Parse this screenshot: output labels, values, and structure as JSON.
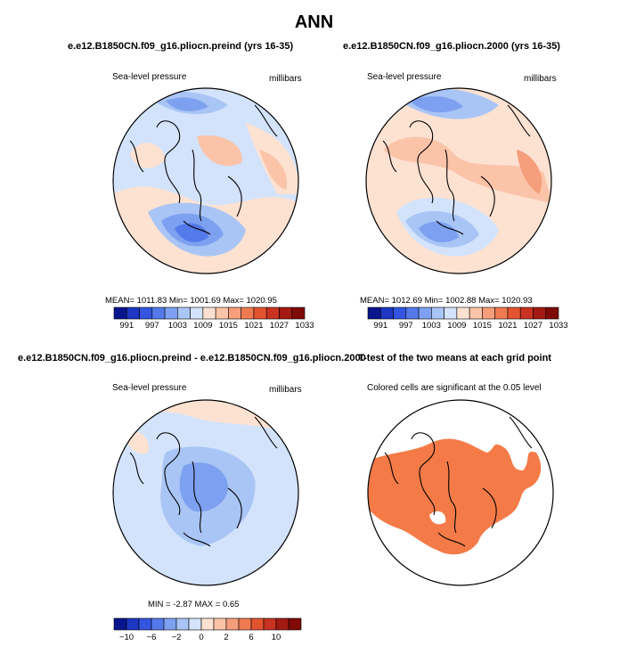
{
  "title": "ANN",
  "panels": [
    {
      "title": "e.e12.B1850CN.f09_g16.pliocn.preind (yrs 16-35)",
      "left_label": "Sea-level pressure",
      "right_label": "millibars",
      "stats": "MEAN=  1011.83   Min=  1001.69   Max=  1020.95"
    },
    {
      "title": "e.e12.B1850CN.f09_g16.pliocn.2000 (yrs 16-35)",
      "left_label": "Sea-level pressure",
      "right_label": "millibars",
      "stats": "MEAN=  1012.69   Min=  1002.88   Max=  1020.93"
    },
    {
      "title": "e.e12.B1850CN.f09_g16.pliocn.preind - e.e12.B1850CN.f09_g16.pliocn.2000",
      "left_label": "Sea-level pressure",
      "right_label": "millibars",
      "stats": "MIN =   -2.87  MAX =     0.65"
    },
    {
      "title": "T-test of the two means at each grid point",
      "left_label": "Colored cells are significant at the 0.05 level"
    }
  ],
  "colorbars": {
    "abs_ticks": [
      "991",
      "997",
      "1003",
      "1009",
      "1015",
      "1021",
      "1027",
      "1033"
    ],
    "diff_ticks": [
      "−10",
      "−6",
      "−2",
      "0",
      "2",
      "6",
      "10"
    ]
  },
  "colors": {
    "palette": [
      "#08158d",
      "#1d36c4",
      "#3355e0",
      "#5479ea",
      "#7da1f0",
      "#a9c5f6",
      "#d3e3fb",
      "#ffffff",
      "#fde2d2",
      "#fbc4a9",
      "#f59e7b",
      "#ef7a52",
      "#e3532f",
      "#c93221",
      "#a31a12",
      "#7e0a06"
    ],
    "significant": "#f47b47"
  },
  "chart_data": [
    {
      "type": "heatmap",
      "title": "e.e12.B1850CN.f09_g16.pliocn.preind (yrs 16-35)",
      "variable": "Sea-level pressure",
      "units": "millibars",
      "projection": "polar stereographic (north)",
      "mean": 1011.83,
      "min": 1001.69,
      "max": 1020.95,
      "levels": [
        991,
        994,
        997,
        1000,
        1003,
        1006,
        1009,
        1012,
        1015,
        1018,
        1021,
        1024,
        1027,
        1030,
        1033
      ],
      "colorbar_ticks": [
        991,
        997,
        1003,
        1009,
        1015,
        1021,
        1027,
        1033
      ]
    },
    {
      "type": "heatmap",
      "title": "e.e12.B1850CN.f09_g16.pliocn.2000 (yrs 16-35)",
      "variable": "Sea-level pressure",
      "units": "millibars",
      "projection": "polar stereographic (north)",
      "mean": 1012.69,
      "min": 1002.88,
      "max": 1020.93,
      "levels": [
        991,
        994,
        997,
        1000,
        1003,
        1006,
        1009,
        1012,
        1015,
        1018,
        1021,
        1024,
        1027,
        1030,
        1033
      ],
      "colorbar_ticks": [
        991,
        997,
        1003,
        1009,
        1015,
        1021,
        1027,
        1033
      ]
    },
    {
      "type": "heatmap",
      "title": "e.e12.B1850CN.f09_g16.pliocn.preind - e.e12.B1850CN.f09_g16.pliocn.2000",
      "variable": "Sea-level pressure difference",
      "units": "millibars",
      "min": -2.87,
      "max": 0.65,
      "colorbar_ticks": [
        -10,
        -6,
        -2,
        0,
        2,
        6,
        10
      ]
    },
    {
      "type": "heatmap",
      "title": "T-test of the two means at each grid point",
      "note": "Colored cells are significant at the 0.05 level",
      "significance_level": 0.05
    }
  ]
}
